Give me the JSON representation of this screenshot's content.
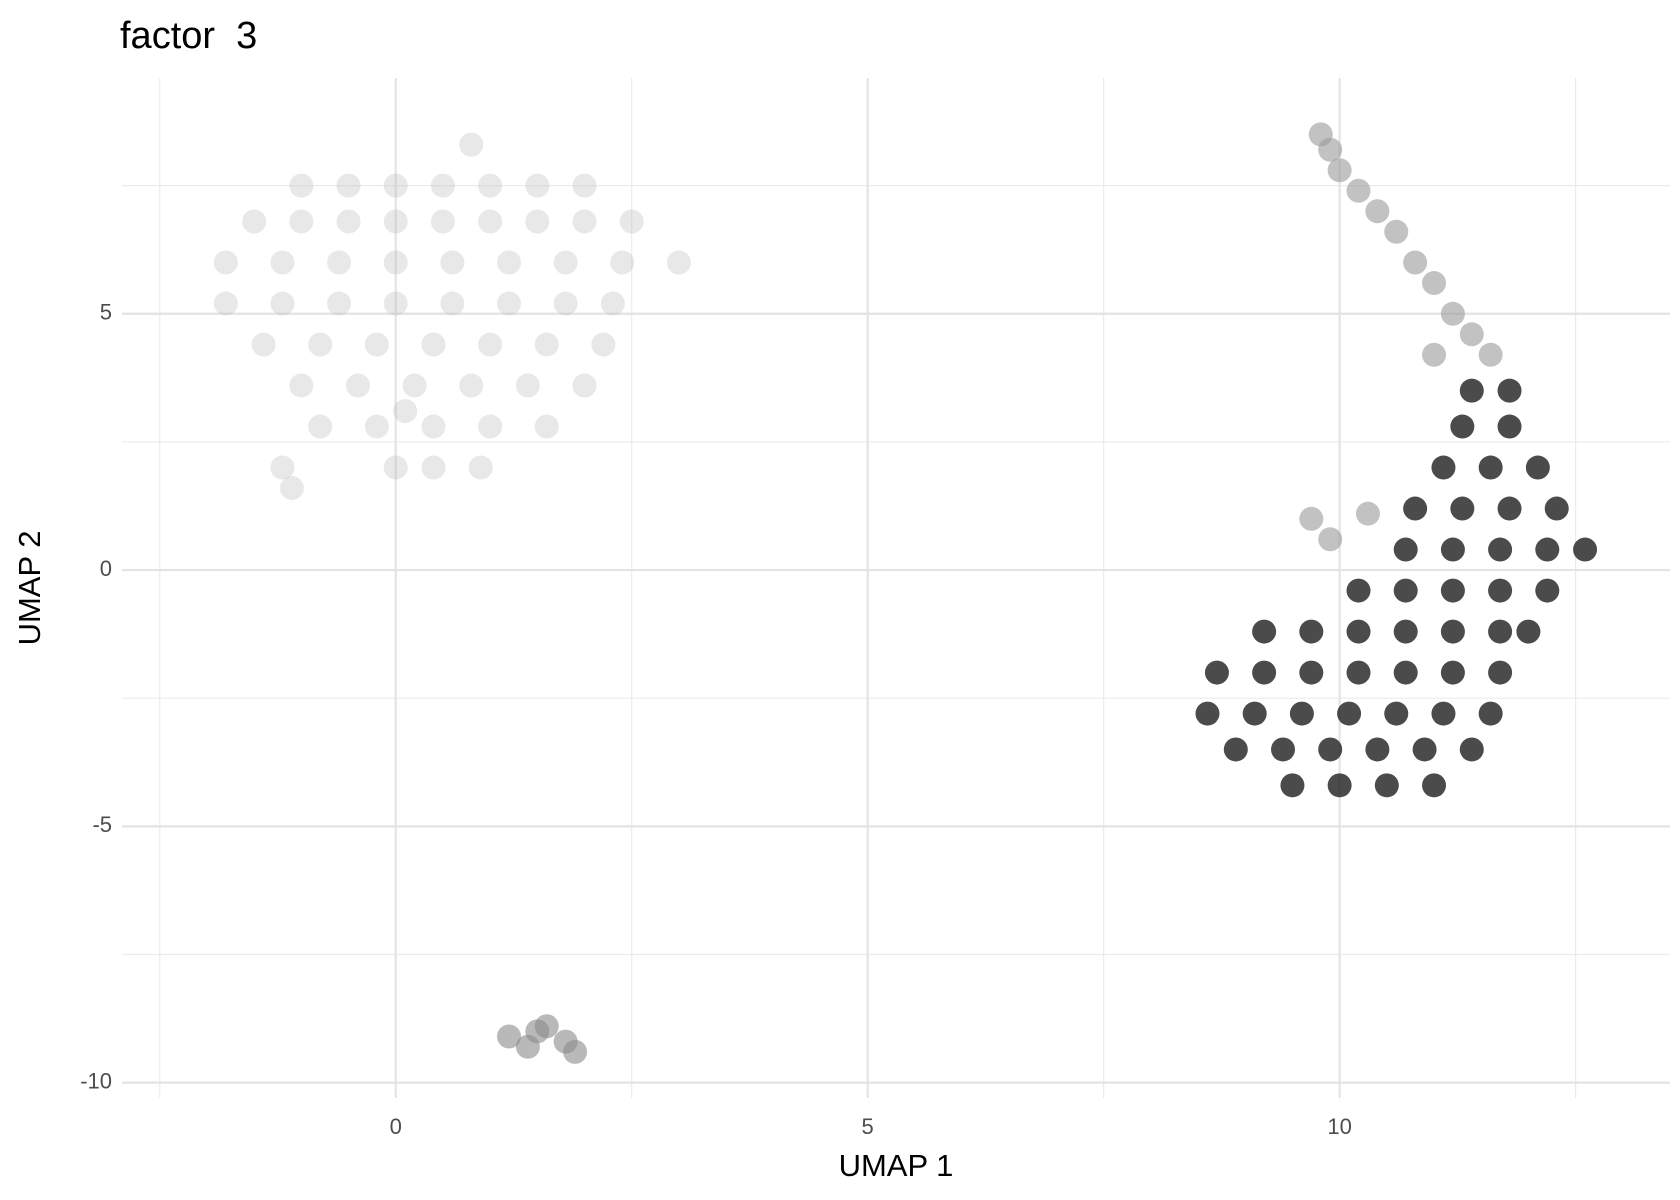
{
  "chart_data": {
    "type": "scatter",
    "title": "factor  3",
    "x_label": "UMAP 1",
    "y_label": "UMAP 2",
    "xlim": [
      -2.9,
      13.5
    ],
    "ylim": [
      -10.3,
      9.6
    ],
    "xticks": [
      0,
      5,
      10
    ],
    "yticks": [
      -10,
      -5,
      0,
      5
    ],
    "xminor": [
      -2.5,
      2.5,
      7.5,
      12.5
    ],
    "yminor": [
      -7.5,
      -2.5,
      2.5,
      7.5
    ],
    "grid": true,
    "series": [
      {
        "color": "#bdbdbd",
        "opacity": 0.35,
        "x": [
          -1,
          -0.5,
          0,
          0.5,
          1,
          1.5,
          2,
          -1.5,
          -1,
          -0.5,
          0,
          0.5,
          1,
          1.5,
          2,
          2.5,
          -1.8,
          -1.2,
          -0.6,
          0,
          0.6,
          1.2,
          1.8,
          2.4,
          3,
          -1.8,
          -1.2,
          -0.6,
          0,
          0.6,
          1.2,
          1.8,
          2.3,
          -1.4,
          -0.8,
          -0.2,
          0.4,
          1,
          1.6,
          2.2,
          -1,
          -0.4,
          0.2,
          0.8,
          1.4,
          2,
          -0.8,
          -0.2,
          0.4,
          1,
          1.6,
          -1.2,
          0,
          0.4,
          0.9,
          0.8,
          0.1,
          -1.1
        ],
        "y": [
          7.5,
          7.5,
          7.5,
          7.5,
          7.5,
          7.5,
          7.5,
          6.8,
          6.8,
          6.8,
          6.8,
          6.8,
          6.8,
          6.8,
          6.8,
          6.8,
          6,
          6,
          6,
          6,
          6,
          6,
          6,
          6,
          6,
          5.2,
          5.2,
          5.2,
          5.2,
          5.2,
          5.2,
          5.2,
          5.2,
          4.4,
          4.4,
          4.4,
          4.4,
          4.4,
          4.4,
          4.4,
          3.6,
          3.6,
          3.6,
          3.6,
          3.6,
          3.6,
          2.8,
          2.8,
          2.8,
          2.8,
          2.8,
          2,
          2,
          2,
          2,
          8.3,
          3.1,
          1.6
        ]
      },
      {
        "color": "#9a9a9a",
        "opacity": 0.6,
        "x": [
          9.8,
          9.9,
          10,
          10.2,
          10.4,
          10.6,
          10.8,
          11,
          11.2,
          11.4,
          11.6,
          9.7,
          9.9,
          10.3,
          11
        ],
        "y": [
          8.5,
          8.2,
          7.8,
          7.4,
          7,
          6.6,
          6,
          5.6,
          5,
          4.6,
          4.2,
          1,
          0.6,
          1.1,
          4.2
        ]
      },
      {
        "color": "#1e1e1e",
        "opacity": 0.8,
        "x": [
          9.5,
          10,
          10.5,
          11,
          8.9,
          9.4,
          9.9,
          10.4,
          10.9,
          11.4,
          8.6,
          9.1,
          9.6,
          10.1,
          10.6,
          11.1,
          11.6,
          8.7,
          9.2,
          9.7,
          10.2,
          10.7,
          11.2,
          11.7,
          9.2,
          9.7,
          10.2,
          10.7,
          11.2,
          11.7,
          12,
          10.2,
          10.7,
          11.2,
          11.7,
          12.2,
          10.7,
          11.2,
          11.7,
          12.2,
          12.6,
          10.8,
          11.3,
          11.8,
          12.3,
          11.1,
          11.6,
          12.1,
          11.3,
          11.8,
          11.4,
          11.8
        ],
        "y": [
          -4.2,
          -4.2,
          -4.2,
          -4.2,
          -3.5,
          -3.5,
          -3.5,
          -3.5,
          -3.5,
          -3.5,
          -2.8,
          -2.8,
          -2.8,
          -2.8,
          -2.8,
          -2.8,
          -2.8,
          -2,
          -2,
          -2,
          -2,
          -2,
          -2,
          -2,
          -1.2,
          -1.2,
          -1.2,
          -1.2,
          -1.2,
          -1.2,
          -1.2,
          -0.4,
          -0.4,
          -0.4,
          -0.4,
          -0.4,
          0.4,
          0.4,
          0.4,
          0.4,
          0.4,
          1.2,
          1.2,
          1.2,
          1.2,
          2,
          2,
          2,
          2.8,
          2.8,
          3.5,
          3.5
        ]
      },
      {
        "color": "#8a8a8a",
        "opacity": 0.6,
        "x": [
          1.2,
          1.4,
          1.6,
          1.8,
          1.9,
          1.5
        ],
        "y": [
          -9.1,
          -9.3,
          -8.9,
          -9.2,
          -9.4,
          -9.0
        ]
      }
    ]
  }
}
